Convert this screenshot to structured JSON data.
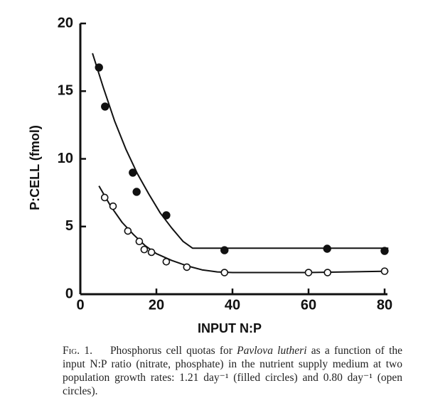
{
  "chart_data": {
    "type": "scatter",
    "xlabel": "INPUT N:P",
    "ylabel": "P:CELL (fmol)",
    "xlim": [
      0,
      80
    ],
    "ylim": [
      0,
      20
    ],
    "xticks": [
      0,
      20,
      40,
      60,
      80
    ],
    "yticks": [
      0,
      5,
      10,
      15,
      20
    ],
    "series": [
      {
        "type": "line",
        "color": "#111",
        "x": [
          3.2,
          6,
          9,
          12,
          15,
          18,
          21,
          24,
          27,
          29.5,
          40,
          60,
          81
        ],
        "values": [
          17.8,
          15.3,
          12.8,
          10.7,
          8.9,
          7.4,
          6.0,
          4.9,
          3.9,
          3.4,
          3.4,
          3.4,
          3.4
        ]
      },
      {
        "type": "line",
        "color": "#111",
        "x": [
          4.9,
          8,
          11,
          14,
          17,
          20,
          24,
          28,
          32,
          36,
          40,
          60,
          81
        ],
        "values": [
          8.0,
          6.5,
          5.3,
          4.4,
          3.6,
          3.0,
          2.5,
          2.1,
          1.8,
          1.65,
          1.6,
          1.6,
          1.7
        ]
      },
      {
        "type": "scatter",
        "marker": "filled",
        "color": "#111",
        "x": [
          4.9,
          6.5,
          13.8,
          14.8,
          22.6,
          37.9,
          64.9,
          80
        ],
        "values": [
          16.75,
          13.86,
          8.98,
          7.56,
          5.83,
          3.25,
          3.36,
          3.2
        ]
      },
      {
        "type": "scatter",
        "marker": "open",
        "color": "#111",
        "x": [
          6.4,
          8.6,
          12.5,
          15.5,
          16.8,
          18.7,
          22.6,
          28,
          37.9,
          60,
          65,
          80
        ],
        "values": [
          7.14,
          6.5,
          4.67,
          3.9,
          3.3,
          3.1,
          2.4,
          2.0,
          1.6,
          1.6,
          1.6,
          1.7
        ]
      }
    ]
  },
  "caption": {
    "label": "Fig. 1.",
    "before": "Phosphorus cell quotas for ",
    "species": "Pavlova lutheri",
    "after": " as a function of the input N:P ratio (nitrate, phosphate) in the nutrient supply medium at two population growth rates: 1.21 day⁻¹ (filled circles) and 0.80 day⁻¹ (open circles)."
  }
}
